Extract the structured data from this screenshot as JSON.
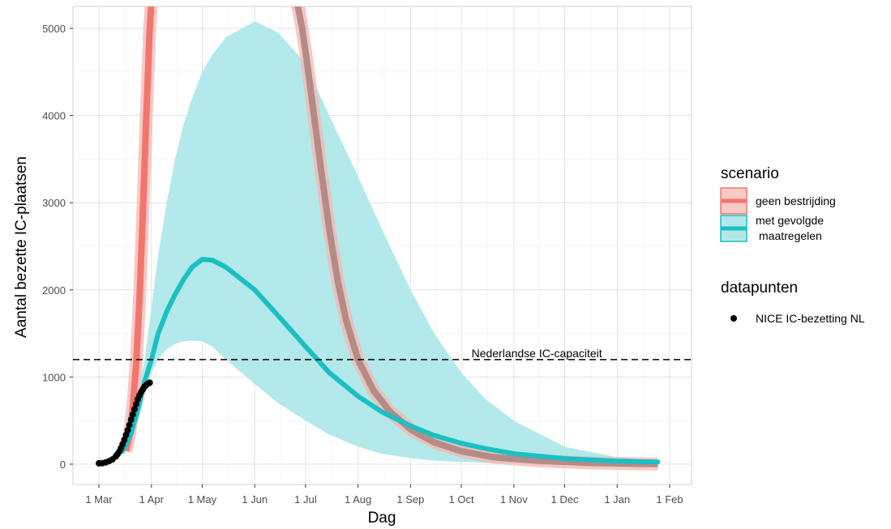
{
  "chart_data": {
    "type": "line",
    "xlabel": "Dag",
    "ylabel": "Aantal bezette IC-plaatsen",
    "x_range": [
      "2020-03-01",
      "2021-02-01"
    ],
    "ylim": [
      0,
      5200
    ],
    "grid": true,
    "x_ticks": [
      {
        "date": "2020-03-01",
        "label": "1 Mar"
      },
      {
        "date": "2020-04-01",
        "label": "1 Apr"
      },
      {
        "date": "2020-05-01",
        "label": "1 May"
      },
      {
        "date": "2020-06-01",
        "label": "1 Jun"
      },
      {
        "date": "2020-07-01",
        "label": "1 Jul"
      },
      {
        "date": "2020-08-01",
        "label": "1 Aug"
      },
      {
        "date": "2020-09-01",
        "label": "1 Sep"
      },
      {
        "date": "2020-10-01",
        "label": "1 Oct"
      },
      {
        "date": "2020-11-01",
        "label": "1 Nov"
      },
      {
        "date": "2020-12-01",
        "label": "1 Dec"
      },
      {
        "date": "2021-01-01",
        "label": "1 Jan"
      },
      {
        "date": "2021-02-01",
        "label": "1 Feb"
      }
    ],
    "y_ticks": [
      0,
      1000,
      2000,
      3000,
      4000,
      5000
    ],
    "hline": {
      "y": 1200,
      "label": "Nederlandse IC-capaciteit",
      "label_date": "2020-10-07"
    },
    "colors": {
      "geen": "#f1766d",
      "geen_band": "#f4b7b2",
      "met": "#1bbfc4",
      "met_band": "#b3e9ea",
      "met_band_edge": "#9fe1e3",
      "points": "#000000",
      "overlap_line": "#b58b86",
      "overlap_band": "#c9aaa6"
    },
    "series": [
      {
        "name": "geen bestrijding",
        "x": [
          "2020-03-17",
          "2020-03-19",
          "2020-03-21",
          "2020-03-23",
          "2020-03-25",
          "2020-03-27",
          "2020-03-29",
          "2020-03-31",
          "2020-04-01"
        ],
        "y": [
          150,
          320,
          650,
          1150,
          1900,
          2900,
          4000,
          5000,
          5300
        ]
      },
      {
        "name": "geen bestrijding",
        "x": [
          "2020-06-26",
          "2020-06-29",
          "2020-07-02",
          "2020-07-06",
          "2020-07-10",
          "2020-07-15",
          "2020-07-20",
          "2020-07-25",
          "2020-08-01",
          "2020-08-10",
          "2020-08-20",
          "2020-09-01",
          "2020-09-15",
          "2020-10-01",
          "2020-10-20",
          "2020-11-15",
          "2020-12-15",
          "2021-01-15",
          "2021-01-25"
        ],
        "y": [
          5300,
          5000,
          4600,
          4000,
          3400,
          2700,
          2100,
          1650,
          1200,
          850,
          600,
          400,
          250,
          150,
          80,
          40,
          15,
          5,
          3
        ]
      },
      {
        "name": "met gevolgde maatregelen",
        "x": [
          "2020-03-15",
          "2020-03-20",
          "2020-03-25",
          "2020-03-28",
          "2020-04-01",
          "2020-04-05",
          "2020-04-10",
          "2020-04-15",
          "2020-04-20",
          "2020-04-25",
          "2020-05-01",
          "2020-05-07",
          "2020-05-15",
          "2020-06-01",
          "2020-06-15",
          "2020-07-01",
          "2020-07-15",
          "2020-08-01",
          "2020-08-15",
          "2020-09-01",
          "2020-09-15",
          "2020-10-01",
          "2020-10-15",
          "2020-11-01",
          "2020-12-01",
          "2021-01-01",
          "2021-01-25"
        ],
        "y": [
          150,
          350,
          700,
          950,
          1200,
          1500,
          1750,
          1950,
          2120,
          2260,
          2350,
          2340,
          2260,
          2000,
          1700,
          1350,
          1050,
          780,
          600,
          440,
          330,
          240,
          180,
          120,
          65,
          35,
          25
        ],
        "band_lower": [
          100,
          250,
          550,
          800,
          1050,
          1200,
          1320,
          1380,
          1410,
          1420,
          1410,
          1350,
          1200,
          920,
          700,
          500,
          340,
          200,
          120,
          70,
          40,
          25,
          15,
          10,
          5,
          3,
          2
        ],
        "band_upper": [
          200,
          450,
          900,
          1200,
          1800,
          2400,
          3000,
          3500,
          3900,
          4200,
          4500,
          4700,
          4900,
          5080,
          4950,
          4600,
          4000,
          3300,
          2700,
          2000,
          1500,
          1050,
          750,
          500,
          200,
          80,
          40
        ]
      },
      {
        "name": "NICE IC-bezetting NL",
        "x": [
          "2020-03-01",
          "2020-03-03",
          "2020-03-05",
          "2020-03-07",
          "2020-03-09",
          "2020-03-11",
          "2020-03-12",
          "2020-03-13",
          "2020-03-14",
          "2020-03-15",
          "2020-03-16",
          "2020-03-17",
          "2020-03-18",
          "2020-03-19",
          "2020-03-20",
          "2020-03-21",
          "2020-03-22",
          "2020-03-23",
          "2020-03-24",
          "2020-03-25",
          "2020-03-26",
          "2020-03-27",
          "2020-03-28",
          "2020-03-29",
          "2020-03-30",
          "2020-03-31"
        ],
        "y": [
          10,
          12,
          20,
          35,
          55,
          90,
          115,
          145,
          185,
          230,
          280,
          335,
          390,
          450,
          510,
          570,
          630,
          690,
          745,
          790,
          830,
          860,
          890,
          910,
          925,
          935
        ]
      }
    ]
  },
  "legend": {
    "scenario_title": "scenario",
    "items": [
      {
        "label": "geen bestrijding",
        "color": "#f1766d",
        "fill": "#f8c9c5"
      },
      {
        "label": "met gevolgde\nmaatregelen",
        "color": "#1bbfc4",
        "fill": "#b3e9ea"
      }
    ],
    "data_title": "datapunten",
    "points_label": "NICE IC-bezetting NL"
  }
}
